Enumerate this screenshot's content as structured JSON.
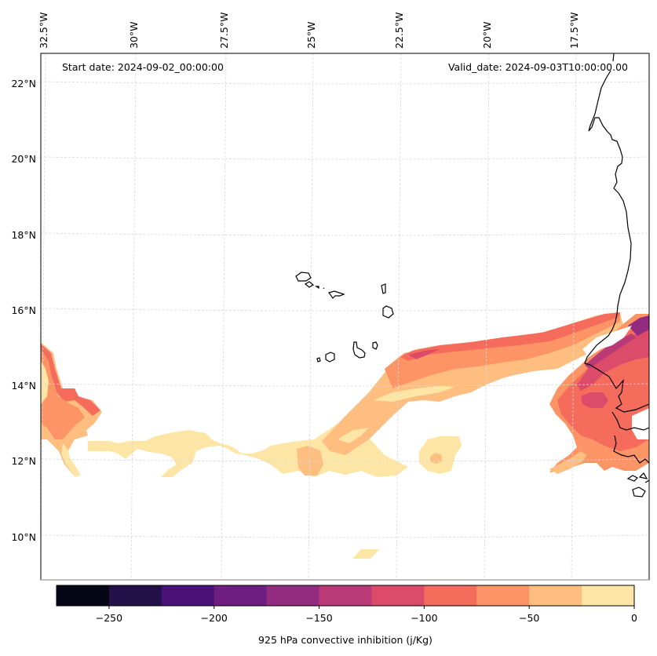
{
  "map": {
    "variable": "925 hPa convective inhibition",
    "units": "j/Kg",
    "start_date_text": "Start date: 2024-09-02_00:00:00",
    "valid_date_text": "Valid_date: 2024-09-03T10:00:00.00",
    "longitude_labels": [
      "32.5°W",
      "30°W",
      "27.5°W",
      "25°W",
      "22.5°W",
      "20°W",
      "17.5°W"
    ],
    "longitudes": [
      -32.5,
      -30,
      -27.5,
      -25,
      -22.5,
      -20,
      -17.5
    ],
    "latitude_labels": [
      "22°N",
      "20°N",
      "18°N",
      "16°N",
      "14°N",
      "12°N",
      "10°N"
    ],
    "latitudes": [
      22,
      20,
      18,
      16,
      14,
      12,
      10
    ],
    "extent": {
      "lon_min": -33.5,
      "lon_max": -16.4,
      "lat_min": 9.1,
      "lat_max": 22.8
    },
    "gridlines": "dashed light gray",
    "coastlines": [
      "Cape Verde islands",
      "West African coast (Mauritania, Senegal, Gambia, Guinea-Bissau)"
    ],
    "cin_regions": [
      {
        "name": "western-plume",
        "lon_range": [
          -33.5,
          -30.8
        ],
        "lat_range": [
          11.6,
          15.1
        ],
        "min_cin": -100
      },
      {
        "name": "southern-band",
        "lon_range": [
          -30.8,
          -21.5
        ],
        "lat_range": [
          11.6,
          12.8
        ],
        "min_cin": -75
      },
      {
        "name": "diagonal-band",
        "lon_range": [
          -25.5,
          -17.5
        ],
        "lat_range": [
          11.8,
          15.2
        ],
        "min_cin": -150
      },
      {
        "name": "senegal-region",
        "lon_range": [
          -18.3,
          -16.4
        ],
        "lat_range": [
          11.5,
          15.9
        ],
        "min_cin": -200
      },
      {
        "name": "isolated-cell",
        "lon_range": [
          -21.4,
          -20.3
        ],
        "lat_range": [
          11.8,
          12.6
        ],
        "min_cin": -75
      },
      {
        "name": "small-patch-south",
        "lon_range": [
          -23.7,
          -23.0
        ],
        "lat_range": [
          9.4,
          9.7
        ],
        "min_cin": -25
      }
    ]
  },
  "colorbar": {
    "label": "925 hPa convective inhibition (j/Kg)",
    "min": -275,
    "max": 0,
    "levels": [
      -275,
      -250,
      -225,
      -200,
      -175,
      -150,
      -125,
      -100,
      -75,
      -50,
      -25,
      0
    ],
    "tick_values": [
      -250,
      -200,
      -150,
      -100,
      -50,
      0
    ],
    "tick_labels": [
      "−250",
      "−200",
      "−150",
      "−100",
      "−50",
      "0"
    ],
    "colors": [
      "#070616",
      "#221149",
      "#491078",
      "#6e1e81",
      "#932b80",
      "#b93a77",
      "#dc4b69",
      "#f56b5c",
      "#fd9466",
      "#febe80",
      "#fde6a5"
    ]
  }
}
